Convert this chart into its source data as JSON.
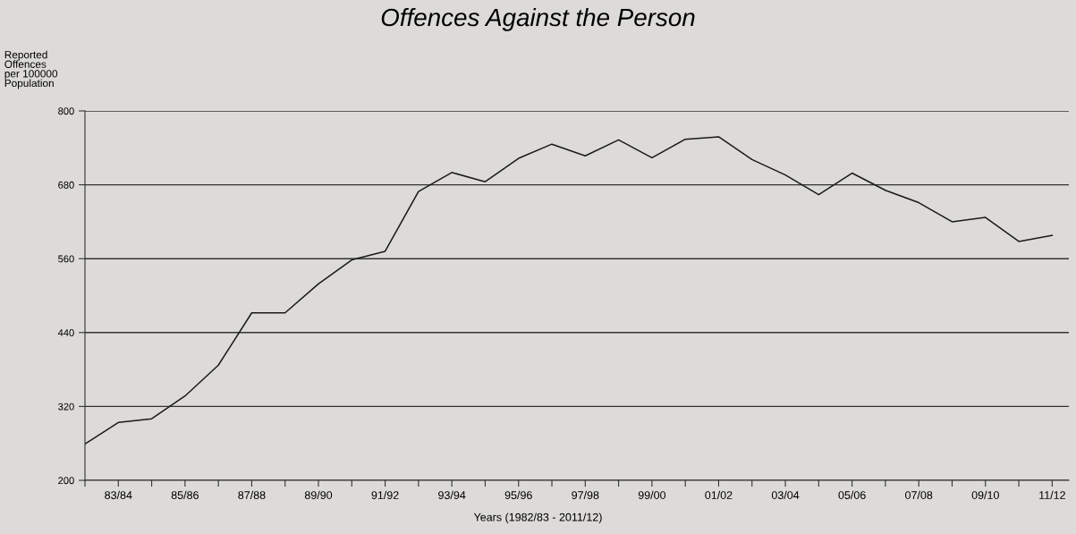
{
  "chart_data": {
    "type": "line",
    "title": "Offences Against the Person",
    "xlabel": "Years (1982/83 - 2011/12)",
    "ylabel": "Reported\nOffences\nper 100000\nPopulation",
    "categories": [
      null,
      "83/84",
      null,
      "85/86",
      null,
      "87/88",
      null,
      "89/90",
      null,
      "91/92",
      null,
      "93/94",
      null,
      "95/96",
      null,
      "97/98",
      null,
      "99/00",
      null,
      "01/02",
      null,
      "03/04",
      null,
      "05/06",
      null,
      "07/08",
      null,
      "09/10",
      null,
      "11/12"
    ],
    "series": [
      {
        "color": "#1a1a1a",
        "values": [
          259,
          294,
          300,
          337,
          387,
          472,
          472,
          519,
          558,
          572,
          669,
          700,
          685,
          723,
          746,
          727,
          753,
          724,
          754,
          758,
          721,
          696,
          664,
          699,
          671,
          651,
          620,
          627,
          588,
          598
        ]
      }
    ],
    "ylim": [
      200,
      800
    ],
    "yticks": [
      200,
      320,
      440,
      560,
      680,
      800
    ],
    "grid": "y",
    "marker": "none",
    "line_style": "solid"
  }
}
